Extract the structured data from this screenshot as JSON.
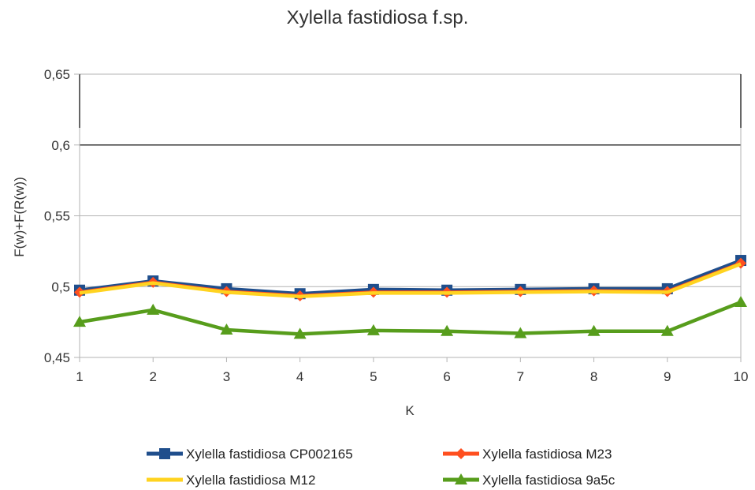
{
  "chart_data": {
    "type": "line",
    "title": "Xylella fastidiosa f.sp.",
    "xlabel": "K",
    "ylabel": "F(w)+F(R(w))",
    "x": [
      1,
      2,
      3,
      4,
      5,
      6,
      7,
      8,
      9,
      10
    ],
    "x_tick_labels": [
      "1",
      "2",
      "3",
      "4",
      "5",
      "6",
      "7",
      "8",
      "9",
      "10"
    ],
    "ylim": [
      0.45,
      0.65
    ],
    "y_ticks": [
      0.45,
      0.5,
      0.55,
      0.6,
      0.65
    ],
    "y_tick_labels": [
      "0,45",
      "0,5",
      "0,55",
      "0,6",
      "0,65"
    ],
    "grid": true,
    "legend_position": "bottom",
    "series": [
      {
        "name": "Xylella fastidiosa CP002165",
        "color": "#1f4e8c",
        "marker": "square",
        "values": [
          0.4975,
          0.504,
          0.4985,
          0.495,
          0.498,
          0.4975,
          0.498,
          0.4985,
          0.4985,
          0.5185
        ]
      },
      {
        "name": "Xylella fastidiosa M23",
        "color": "#ff4f1f",
        "marker": "diamond",
        "values": [
          0.496,
          0.503,
          0.4965,
          0.4935,
          0.496,
          0.496,
          0.4965,
          0.497,
          0.4965,
          0.5165
        ]
      },
      {
        "name": "Xylella fastidiosa M12",
        "color": "#ffd320",
        "marker": "none",
        "values": [
          0.4955,
          0.5025,
          0.496,
          0.493,
          0.4955,
          0.4955,
          0.496,
          0.4965,
          0.496,
          0.516
        ]
      },
      {
        "name": "Xylella fastidiosa 9a5c",
        "color": "#579d1c",
        "marker": "triangle",
        "values": [
          0.475,
          0.4835,
          0.4695,
          0.4665,
          0.469,
          0.4685,
          0.467,
          0.4685,
          0.4685,
          0.489
        ]
      }
    ]
  }
}
